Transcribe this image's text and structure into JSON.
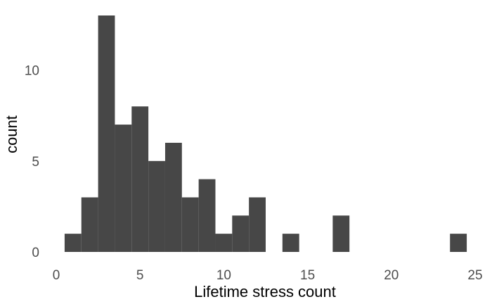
{
  "chart_data": {
    "type": "bar",
    "xlabel": "Lifetime stress count",
    "ylabel": "count",
    "xlim": [
      0,
      25
    ],
    "ylim": [
      0,
      13
    ],
    "x_ticks": [
      0,
      5,
      10,
      15,
      20,
      25
    ],
    "y_ticks": [
      0,
      5,
      10
    ],
    "grid": false,
    "bin_width": 1,
    "bins": [
      {
        "x": 1,
        "count": 1
      },
      {
        "x": 2,
        "count": 3
      },
      {
        "x": 3,
        "count": 13
      },
      {
        "x": 4,
        "count": 7
      },
      {
        "x": 5,
        "count": 8
      },
      {
        "x": 6,
        "count": 5
      },
      {
        "x": 7,
        "count": 6
      },
      {
        "x": 8,
        "count": 3
      },
      {
        "x": 9,
        "count": 4
      },
      {
        "x": 10,
        "count": 1
      },
      {
        "x": 11,
        "count": 2
      },
      {
        "x": 12,
        "count": 3
      },
      {
        "x": 14,
        "count": 1
      },
      {
        "x": 17,
        "count": 2
      },
      {
        "x": 24,
        "count": 1
      }
    ],
    "bar_color": "#474747"
  }
}
